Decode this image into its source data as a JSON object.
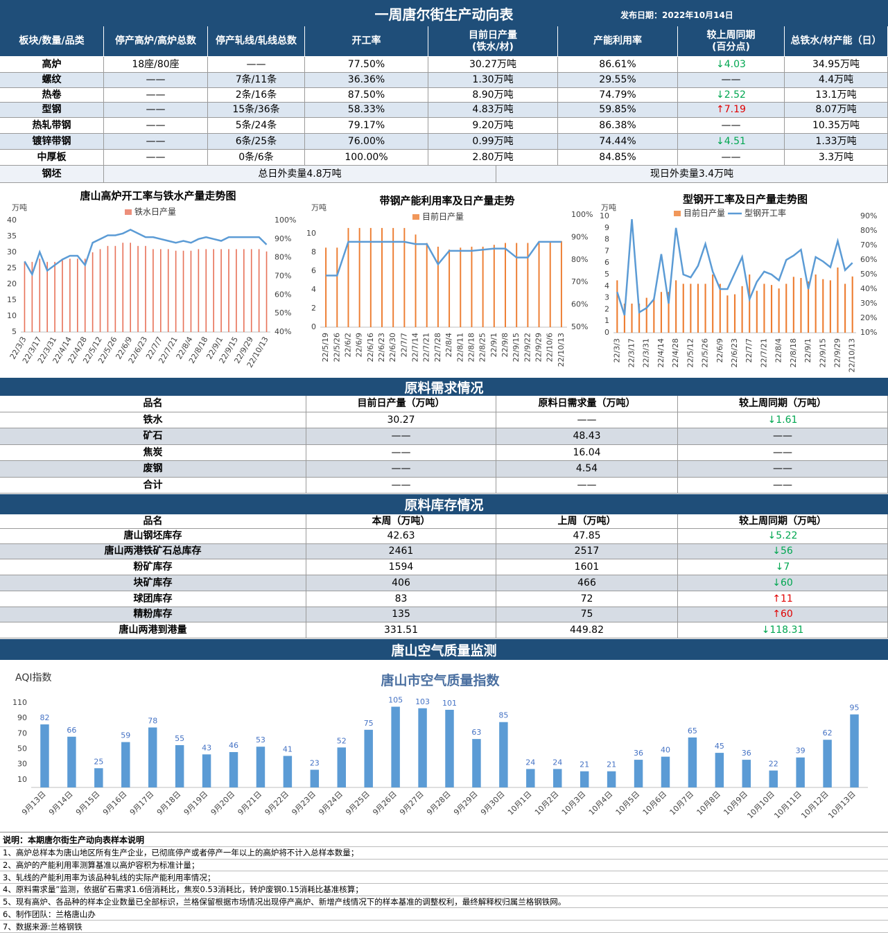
{
  "header": {
    "title": "一周唐尔街生产动向表",
    "date": "发布日期：2022年10月14日"
  },
  "production_table": {
    "columns": [
      "板块/数量/品类",
      "停产高炉/高炉总数",
      "停产轧线/轧线总数",
      "开工率",
      "目前日产量\n(铁水/材)",
      "产能利用率",
      "较上周同期\n(百分点)",
      "总铁水/材产能（日）"
    ],
    "rows": [
      [
        "高炉",
        "18座/80座",
        "——",
        "77.50%",
        "30.27万吨",
        "86.61%",
        "↓4.03",
        "34.95万吨"
      ],
      [
        "螺纹",
        "——",
        "7条/11条",
        "36.36%",
        "1.30万吨",
        "29.55%",
        "——",
        "4.4万吨"
      ],
      [
        "热卷",
        "——",
        "2条/16条",
        "87.50%",
        "8.90万吨",
        "74.79%",
        "↓2.52",
        "13.1万吨"
      ],
      [
        "型钢",
        "——",
        "15条/36条",
        "58.33%",
        "4.83万吨",
        "59.85%",
        "↑7.19",
        "8.07万吨"
      ],
      [
        "热轧带钢",
        "——",
        "5条/24条",
        "79.17%",
        "9.20万吨",
        "86.38%",
        "——",
        "10.35万吨"
      ],
      [
        "镀锌带钢",
        "——",
        "6条/25条",
        "76.00%",
        "0.99万吨",
        "74.44%",
        "↓4.51",
        "1.33万吨"
      ],
      [
        "中厚板",
        "——",
        "0条/6条",
        "100.00%",
        "2.80万吨",
        "84.85%",
        "——",
        "3.3万吨"
      ]
    ],
    "billet": [
      "钢坯",
      "总日外卖量4.8万吨",
      "现日外卖量3.4万吨"
    ]
  },
  "chart_data": [
    {
      "type": "combo",
      "title": "唐山高炉开工率与铁水产量走势图",
      "y_label": "万吨",
      "categories": [
        "22/3/3",
        null,
        "22/3/17",
        null,
        "22/3/31",
        null,
        "22/4/14",
        null,
        "22/4/28",
        null,
        "22/5/12",
        null,
        "22/5/26",
        null,
        "22/6/9",
        null,
        "22/6/23",
        null,
        "22/7/7",
        null,
        "22/7/21",
        null,
        "22/8/4",
        null,
        "22/8/18",
        null,
        "22/9/1",
        null,
        "22/9/15",
        null,
        "22/9/29",
        null,
        "22/10/13"
      ],
      "series": [
        {
          "name": "铁水日产量",
          "type": "bar",
          "color": "#e8735a",
          "values": [
            27,
            27,
            28,
            27,
            27,
            28,
            28,
            28,
            28,
            30,
            31,
            32,
            32,
            33,
            33,
            32,
            32,
            31,
            31,
            31,
            30.5,
            30.5,
            30.5,
            31,
            31,
            31,
            31,
            31,
            31,
            31,
            31,
            31,
            30.27
          ]
        },
        {
          "type": "line",
          "axis": "y2",
          "color": "#5b9bd5",
          "values": [
            78,
            71,
            83,
            73,
            76,
            79,
            81,
            81,
            76,
            88,
            90,
            92,
            92,
            93,
            95,
            93,
            91,
            91,
            90,
            89,
            88,
            89,
            88,
            90,
            91,
            90,
            89,
            91,
            91,
            91,
            91,
            91,
            87
          ]
        }
      ],
      "ylim": [
        5,
        40
      ],
      "yticks": [
        5,
        10,
        15,
        20,
        25,
        30,
        35,
        40
      ],
      "y2lim": [
        40,
        100
      ],
      "y2ticks": [
        {
          "value": 40,
          "label": "40%"
        },
        {
          "value": 50,
          "label": "50%"
        },
        {
          "value": 60,
          "label": "60%"
        },
        {
          "value": 70,
          "label": "70%"
        },
        {
          "value": 80,
          "label": "80%"
        },
        {
          "value": 90,
          "label": "90%"
        },
        {
          "value": 100,
          "label": "100%"
        }
      ],
      "grid": false
    },
    {
      "type": "combo",
      "title": "带钢产能利用率及日产量走势",
      "y_label": "万吨",
      "categories": [
        "22/5/19",
        "22/5/26",
        "22/6/2",
        "22/6/9",
        "22/6/16",
        "22/6/23",
        "22/6/30",
        "22/7/7",
        "22/7/14",
        "22/7/21",
        "22/7/28",
        "22/8/4",
        "22/8/11",
        "22/8/18",
        "22/8/25",
        "22/9/1",
        "22/9/8",
        "22/9/15",
        "22/9/22",
        "22/9/29",
        "22/10/6",
        "22/10/13"
      ],
      "series": [
        {
          "name": "目前日产量",
          "type": "bar",
          "color": "#ed7d31",
          "values": [
            8.5,
            8.5,
            10.6,
            10.6,
            10.6,
            10.6,
            10.6,
            10.6,
            9.9,
            9.0,
            8.6,
            8.3,
            8.5,
            8.6,
            8.6,
            8.8,
            9.0,
            9.0,
            9.0,
            9.0,
            9.1,
            9.2
          ]
        },
        {
          "type": "line",
          "axis": "y2",
          "color": "#5b9bd5",
          "values": [
            73,
            73,
            88,
            88,
            88,
            88,
            88,
            88,
            87,
            87,
            78,
            84,
            84,
            84,
            84.5,
            85,
            85,
            81,
            81,
            88,
            88,
            88
          ]
        }
      ],
      "ylim": [
        0,
        12
      ],
      "yticks": [
        0,
        2,
        4,
        6,
        8,
        10
      ],
      "y2lim": [
        50,
        100
      ],
      "y2ticks": [
        {
          "value": 50,
          "label": "50%"
        },
        {
          "value": 60,
          "label": "60%"
        },
        {
          "value": 70,
          "label": "70%"
        },
        {
          "value": 80,
          "label": "80%"
        },
        {
          "value": 90,
          "label": "90%"
        },
        {
          "value": 100,
          "label": "100%"
        }
      ],
      "grid": false
    },
    {
      "type": "combo",
      "title": "型钢开工率及日产量走势图",
      "y_label": "万吨",
      "categories": [
        "22/3/3",
        null,
        "22/3/17",
        null,
        "22/3/31",
        null,
        "22/4/14",
        null,
        "22/4/28",
        null,
        "22/5/12",
        null,
        "22/5/26",
        null,
        "22/6/9",
        null,
        "22/6/23",
        null,
        "22/7/7",
        null,
        "22/7/21",
        null,
        "22/8/4",
        null,
        "22/8/18",
        null,
        "22/9/1",
        null,
        "22/9/15",
        null,
        "22/9/29",
        null,
        "22/10/13"
      ],
      "series": [
        {
          "name": "目前日产量",
          "type": "bar",
          "color": "#ed7d31",
          "values": [
            4.5,
            2.5,
            2.5,
            2.5,
            3,
            3,
            3.5,
            3.5,
            4.5,
            4.2,
            4.2,
            4.2,
            4.2,
            5,
            4.2,
            3.2,
            3.3,
            4,
            5,
            3.6,
            4.2,
            4.1,
            3.8,
            4.2,
            4.8,
            4.7,
            4.4,
            5,
            4.6,
            4.5,
            5.6,
            4.2,
            4.83
          ]
        },
        {
          "name": "型钢开工率",
          "type": "line",
          "axis": "y2",
          "color": "#5b9bd5",
          "values": [
            38,
            22,
            88,
            24,
            27,
            33,
            64,
            30,
            82,
            50,
            48,
            56,
            71,
            52,
            40,
            40,
            51,
            62,
            33,
            45,
            52,
            50,
            46,
            60,
            63,
            67,
            40,
            62,
            59,
            55,
            73,
            53,
            58
          ]
        }
      ],
      "ylim": [
        0,
        10
      ],
      "yticks": [
        0,
        1,
        2,
        3,
        4,
        5,
        6,
        7,
        8,
        9,
        10
      ],
      "y2lim": [
        10,
        90
      ],
      "y2ticks": [
        {
          "value": 10,
          "label": "10%"
        },
        {
          "value": 20,
          "label": "20%"
        },
        {
          "value": 30,
          "label": "30%"
        },
        {
          "value": 40,
          "label": "40%"
        },
        {
          "value": 50,
          "label": "50%"
        },
        {
          "value": 60,
          "label": "60%"
        },
        {
          "value": 70,
          "label": "70%"
        },
        {
          "value": 80,
          "label": "80%"
        },
        {
          "value": 90,
          "label": "90%"
        }
      ],
      "grid": false
    },
    {
      "type": "bar",
      "title": "唐山市空气质量指数",
      "y_label": "AQI指数",
      "categories": [
        "9月13日",
        "9月14日",
        "9月15日",
        "9月16日",
        "9月17日",
        "9月18日",
        "9月19日",
        "9月20日",
        "9月21日",
        "9月22日",
        "9月23日",
        "9月24日",
        "9月25日",
        "9月26日",
        "9月27日",
        "9月28日",
        "9月29日",
        "9月30日",
        "10月1日",
        "10月2日",
        "10月3日",
        "10月4日",
        "10月5日",
        "10月6日",
        "10月7日",
        "10月8日",
        "10月9日",
        "10月10日",
        "10月11日",
        "10月12日",
        "10月13日"
      ],
      "values": [
        82,
        66,
        25,
        59,
        78,
        55,
        43,
        46,
        53,
        41,
        23,
        52,
        75,
        105,
        103,
        101,
        63,
        85,
        24,
        24,
        21,
        21,
        36,
        40,
        65,
        45,
        36,
        22,
        39,
        62,
        95
      ],
      "color": "#5b9bd5",
      "ylim": [
        0,
        110
      ],
      "yticks": [
        10,
        30,
        50,
        70,
        90,
        110
      ],
      "grid": false
    }
  ],
  "demand": {
    "title": "原料需求情况",
    "columns": [
      "品名",
      "目前日产量（万吨）",
      "原料日需求量（万吨）",
      "较上周同期（万吨）"
    ],
    "rows": [
      [
        "铁水",
        "30.27",
        "——",
        "↓1.61"
      ],
      [
        "矿石",
        "——",
        "48.43",
        "——"
      ],
      [
        "焦炭",
        "——",
        "16.04",
        "——"
      ],
      [
        "废钢",
        "——",
        "4.54",
        "——"
      ],
      [
        "合计",
        "——",
        "——",
        "——"
      ]
    ]
  },
  "inventory": {
    "title": "原料库存情况",
    "columns": [
      "品名",
      "本周（万吨）",
      "上周（万吨）",
      "较上周同期（万吨）"
    ],
    "rows": [
      [
        "唐山钢坯库存",
        "42.63",
        "47.85",
        "↓5.22"
      ],
      [
        "唐山两港铁矿石总库存",
        "2461",
        "2517",
        "↓56"
      ],
      [
        "粉矿库存",
        "1594",
        "1601",
        "↓7"
      ],
      [
        "块矿库存",
        "406",
        "466",
        "↓60"
      ],
      [
        "球团库存",
        "83",
        "72",
        "↑11"
      ],
      [
        "精粉库存",
        "135",
        "75",
        "↑60"
      ],
      [
        "唐山两港到港量",
        "331.51",
        "449.82",
        "↓118.31"
      ]
    ]
  },
  "air_quality": {
    "title": "唐山空气质量监测"
  },
  "notes": {
    "title": "说明：本期唐尔街生产动向表样本说明",
    "items": [
      "1、高炉总样本为唐山地区所有生产企业，已彻底停产或者停产一年以上的高炉将不计入总样本数量；",
      "2、高炉的产能利用率测算基准以高炉容积为标准计量；",
      "3、轧线的产能利用率为该品种轧线的实际产能利用率情况；",
      "4、原料需求量”监测，依据矿石需求1.6倍消耗比，焦炭0.53消耗比，转炉废钢0.15消耗比基准核算；",
      "5、现有高炉、各品种的样本企业数量已全部标识，兰格保留根据市场情况出现停产高炉、新增产线情况下的样本基准的调整权利，最终解释权归属兰格钢铁网。",
      "6、制作团队：兰格唐山办",
      "7、数据来源:兰格钢铁"
    ]
  }
}
